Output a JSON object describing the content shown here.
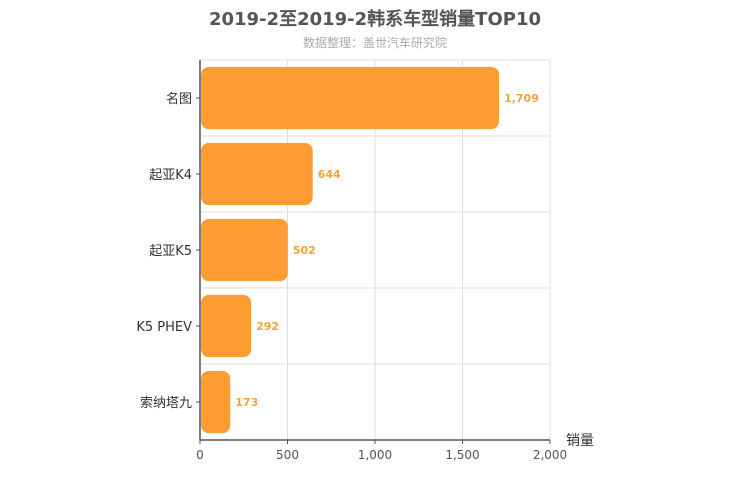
{
  "title": "2019-2至2019-2韩系车型销量TOP10",
  "subtitle": "数据整理：盖世汽车研究院",
  "chart_data": {
    "type": "bar",
    "orientation": "horizontal",
    "categories": [
      "名图",
      "起亚K4",
      "起亚K5",
      "K5 PHEV",
      "索纳塔九"
    ],
    "values": [
      1709,
      644,
      502,
      292,
      173
    ],
    "value_labels": [
      "1,709",
      "644",
      "502",
      "292",
      "173"
    ],
    "title": "2019-2至2019-2韩系车型销量TOP10",
    "subtitle": "数据整理：盖世汽车研究院",
    "xlabel": "销量",
    "xlim": [
      0,
      2000
    ],
    "xticks": [
      0,
      500,
      1000,
      1500,
      2000
    ],
    "xtick_labels": [
      "0",
      "500",
      "1,000",
      "1,500",
      "2,000"
    ],
    "grid": true,
    "legend": "none",
    "bar_color": "#ff9c33",
    "label_color": "#f5a23a"
  }
}
